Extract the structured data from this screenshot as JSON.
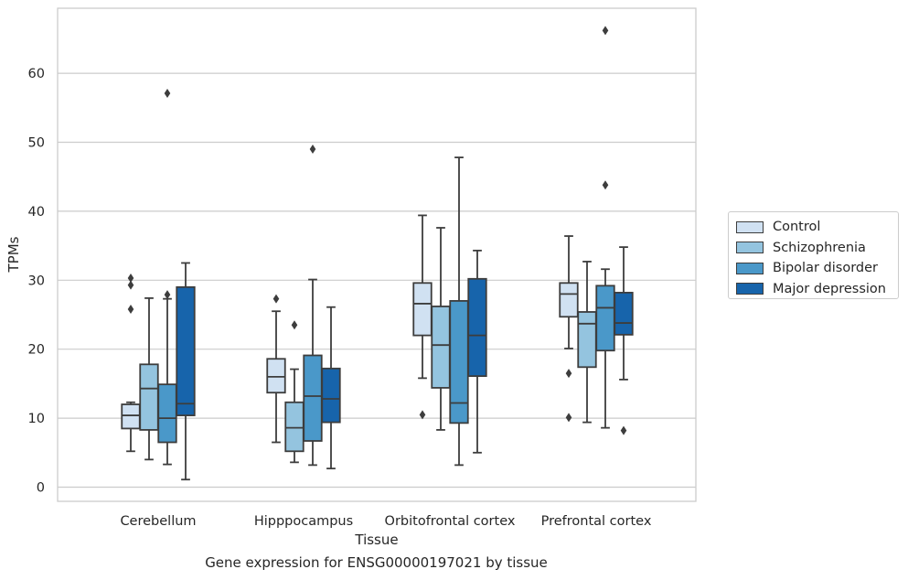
{
  "chart_data": {
    "type": "box",
    "xlabel": "Tissue",
    "ylabel": "TPMs",
    "ylim": [
      -2,
      69
    ],
    "yticks": [
      0,
      10,
      20,
      30,
      40,
      50,
      60
    ],
    "grid": "horizontal",
    "legend_position": "right",
    "categories": [
      "Cerebellum",
      "Hipppocampus",
      "Orbitofrontal cortex",
      "Prefrontal cortex"
    ],
    "series": [
      {
        "name": "Control",
        "color": "#d0e1f2",
        "boxes": [
          {
            "whisker_low": 5.2,
            "q1": 8.5,
            "median": 10.4,
            "q3": 12.0,
            "whisker_high": 12.3,
            "outliers": [
              25.8,
              29.3,
              30.3
            ]
          },
          {
            "whisker_low": 6.5,
            "q1": 13.7,
            "median": 16.0,
            "q3": 18.6,
            "whisker_high": 25.5,
            "outliers": [
              27.3
            ]
          },
          {
            "whisker_low": 15.8,
            "q1": 22.0,
            "median": 26.6,
            "q3": 29.6,
            "whisker_high": 39.4,
            "outliers": [
              10.5
            ]
          },
          {
            "whisker_low": 20.1,
            "q1": 24.7,
            "median": 28.0,
            "q3": 29.6,
            "whisker_high": 36.4,
            "outliers": [
              10.1,
              16.5
            ]
          }
        ]
      },
      {
        "name": "Schizophrenia",
        "color": "#94c4df",
        "boxes": [
          {
            "whisker_low": 4.0,
            "q1": 8.3,
            "median": 14.3,
            "q3": 17.8,
            "whisker_high": 27.4,
            "outliers": []
          },
          {
            "whisker_low": 3.6,
            "q1": 5.2,
            "median": 8.6,
            "q3": 12.3,
            "whisker_high": 17.1,
            "outliers": [
              23.5
            ]
          },
          {
            "whisker_low": 8.3,
            "q1": 14.4,
            "median": 20.6,
            "q3": 26.2,
            "whisker_high": 37.6,
            "outliers": []
          },
          {
            "whisker_low": 9.4,
            "q1": 17.4,
            "median": 23.7,
            "q3": 25.4,
            "whisker_high": 32.7,
            "outliers": []
          }
        ]
      },
      {
        "name": "Bipolar disorder",
        "color": "#4a98c9",
        "boxes": [
          {
            "whisker_low": 3.3,
            "q1": 6.5,
            "median": 10.0,
            "q3": 14.9,
            "whisker_high": 27.3,
            "outliers": [
              57.1,
              27.9
            ]
          },
          {
            "whisker_low": 3.2,
            "q1": 6.7,
            "median": 13.2,
            "q3": 19.1,
            "whisker_high": 30.1,
            "outliers": [
              49.0
            ]
          },
          {
            "whisker_low": 3.2,
            "q1": 9.3,
            "median": 12.2,
            "q3": 27.0,
            "whisker_high": 47.8,
            "outliers": []
          },
          {
            "whisker_low": 8.6,
            "q1": 19.8,
            "median": 26.0,
            "q3": 29.2,
            "whisker_high": 31.6,
            "outliers": [
              43.8,
              66.2
            ]
          }
        ]
      },
      {
        "name": "Major depression",
        "color": "#1764ab",
        "boxes": [
          {
            "whisker_low": 1.1,
            "q1": 10.4,
            "median": 12.1,
            "q3": 29.0,
            "whisker_high": 32.5,
            "outliers": []
          },
          {
            "whisker_low": 2.7,
            "q1": 9.4,
            "median": 12.8,
            "q3": 17.2,
            "whisker_high": 26.1,
            "outliers": []
          },
          {
            "whisker_low": 5.0,
            "q1": 16.1,
            "median": 22.0,
            "q3": 30.2,
            "whisker_high": 34.3,
            "outliers": []
          },
          {
            "whisker_low": 15.6,
            "q1": 22.1,
            "median": 23.8,
            "q3": 28.2,
            "whisker_high": 34.8,
            "outliers": [
              8.2
            ]
          }
        ]
      }
    ]
  },
  "caption": "Gene expression for ENSG00000197021 by tissue"
}
